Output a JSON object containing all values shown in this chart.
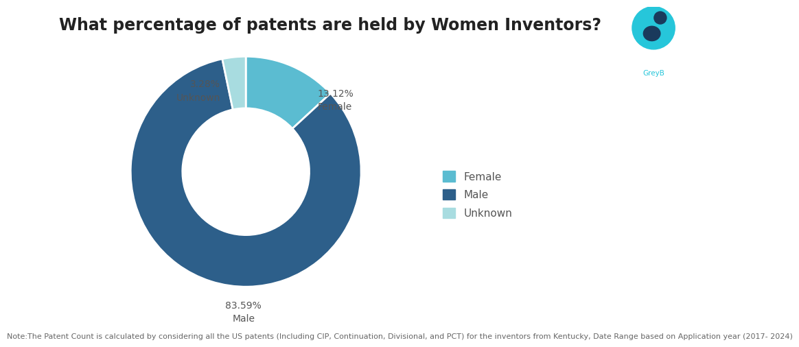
{
  "title": "What percentage of patents are held by Women Inventors?",
  "labels": [
    "Female",
    "Male",
    "Unknown"
  ],
  "values": [
    13.12,
    83.59,
    3.28
  ],
  "colors": [
    "#5bbcd1",
    "#2d5f8a",
    "#a8dce0"
  ],
  "legend_labels": [
    "Female",
    "Male",
    "Unknown"
  ],
  "note": "Note:The Patent Count is calculated by considering all the US patents (Including CIP, Continuation, Divisional, and PCT) for the inventors from Kentucky, Date Range based on Application year (2017- 2024)",
  "background_color": "#ffffff",
  "wedge_edge_color": "#ffffff",
  "title_fontsize": 17,
  "note_fontsize": 8,
  "legend_fontsize": 11,
  "label_fontsize": 10,
  "donut_width": 0.45,
  "label_color": "#555555"
}
